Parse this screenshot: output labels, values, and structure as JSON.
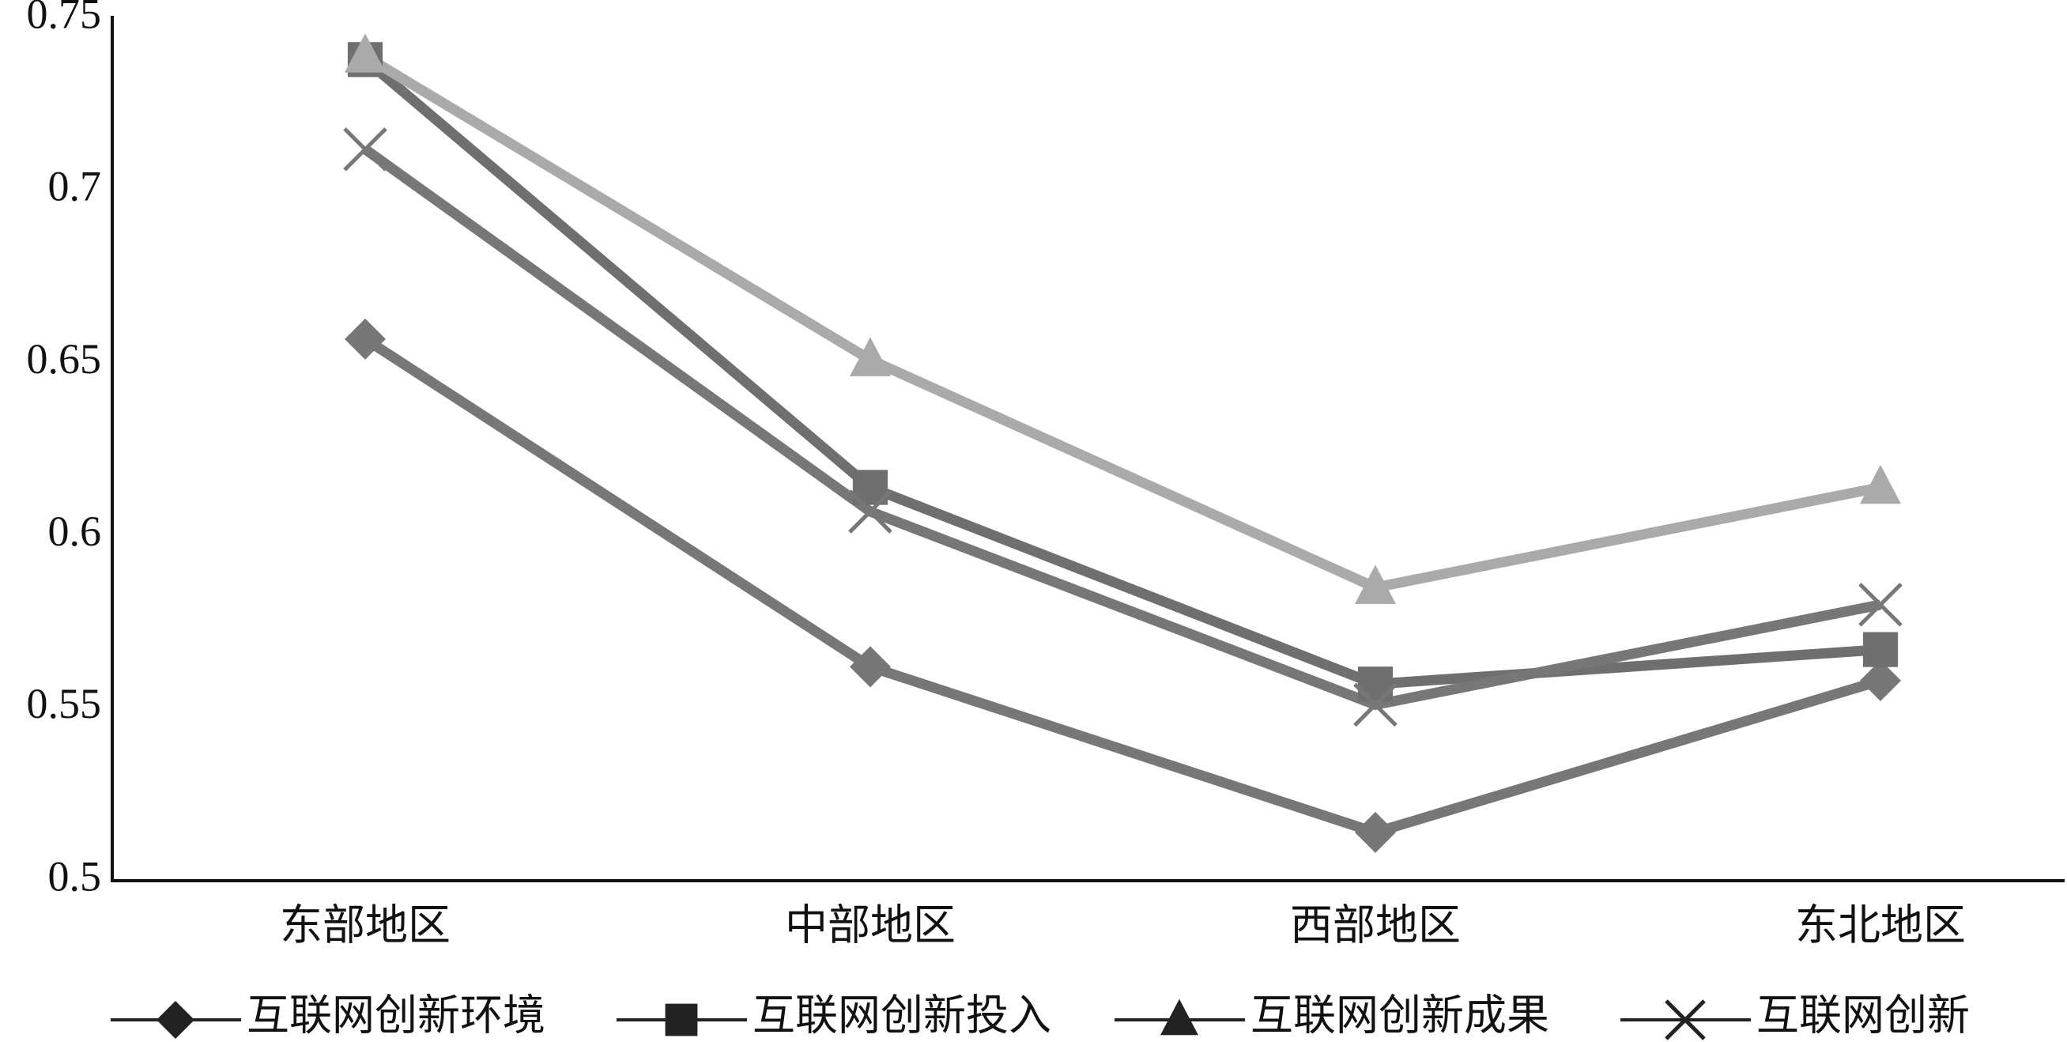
{
  "chart_data": {
    "type": "line",
    "categories": [
      "东部地区",
      "中部地区",
      "西部地区",
      "东北地区"
    ],
    "series": [
      {
        "name": "互联网创新环境",
        "color": "#777777",
        "marker": "diamond",
        "values": [
          0.657,
          0.562,
          0.514,
          0.558
        ]
      },
      {
        "name": "互联网创新投入",
        "color": "#6f6f6f",
        "marker": "square",
        "values": [
          0.738,
          0.614,
          0.557,
          0.567
        ]
      },
      {
        "name": "互联网创新成果",
        "color": "#aaaaaa",
        "marker": "triangle",
        "values": [
          0.739,
          0.651,
          0.585,
          0.614
        ]
      },
      {
        "name": "互联网创新",
        "color": "#777777",
        "marker": "cross",
        "values": [
          0.712,
          0.607,
          0.551,
          0.58
        ]
      }
    ],
    "ylim": [
      0.5,
      0.75
    ],
    "yticks": [
      0.5,
      0.55,
      0.6,
      0.65,
      0.7,
      0.75
    ],
    "grid": false,
    "legend": "bottom"
  }
}
